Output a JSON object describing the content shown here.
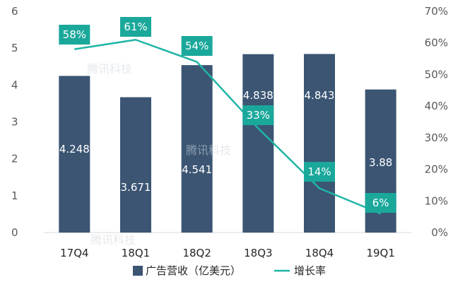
{
  "chart_data": {
    "type": "bar",
    "categories": [
      "17Q4",
      "18Q1",
      "18Q2",
      "18Q3",
      "18Q4",
      "19Q1"
    ],
    "series": [
      {
        "name": "广告营收（亿美元）",
        "kind": "bar",
        "axis": "left",
        "values": [
          4.248,
          3.671,
          4.541,
          4.838,
          4.843,
          3.88
        ],
        "labels": [
          "4.248",
          "3.671",
          "4.541",
          "4.838",
          "4.843",
          "3.88"
        ]
      },
      {
        "name": "增长率",
        "kind": "line",
        "axis": "right",
        "values": [
          58,
          61,
          54,
          33,
          14,
          6
        ],
        "labels": [
          "58%",
          "61%",
          "54%",
          "33%",
          "14%",
          "6%"
        ]
      }
    ],
    "y_left": {
      "min": 0,
      "max": 6,
      "ticks": [
        "0",
        "1",
        "2",
        "3",
        "4",
        "5",
        "6"
      ]
    },
    "y_right": {
      "min": 0,
      "max": 70,
      "ticks": [
        "0%",
        "10%",
        "20%",
        "30%",
        "40%",
        "50%",
        "60%",
        "70%"
      ]
    },
    "grid": false,
    "legend_position": "bottom",
    "colors": {
      "bar": "#3b5573",
      "line": "#1fb5a6",
      "label_box": "#1aa89b"
    },
    "watermark": "腾讯科技"
  }
}
